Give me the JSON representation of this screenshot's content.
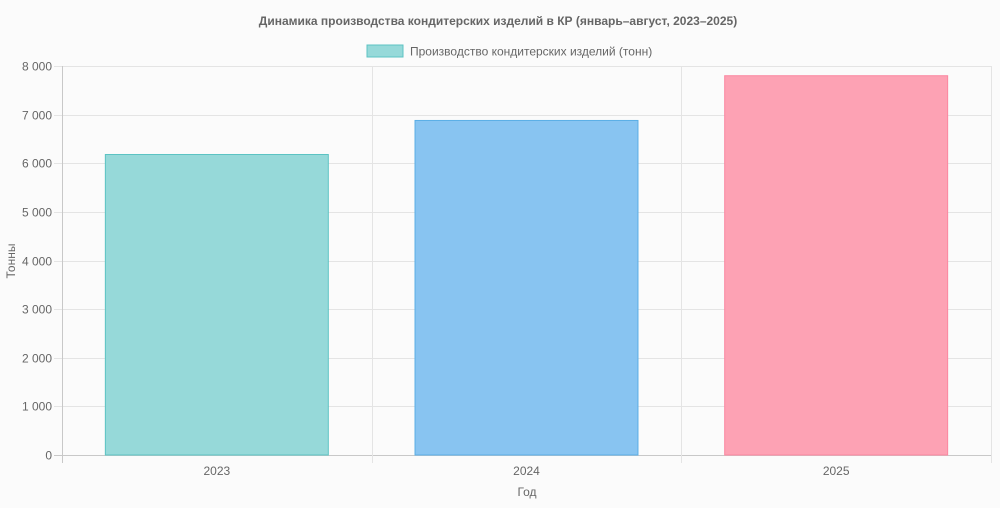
{
  "chart_data": {
    "type": "bar",
    "title": "Динамика производства кондитерских изделий в КР (январь–август, 2023–2025)",
    "categories": [
      "2023",
      "2024",
      "2025"
    ],
    "series": [
      {
        "name": "Производство кондитерских изделий (тонн)",
        "values": [
          6180,
          6880,
          7800
        ]
      }
    ],
    "xlabel": "Год",
    "ylabel": "Тонны",
    "ylim": [
      0,
      8000
    ],
    "yticks": [
      0,
      1000,
      2000,
      3000,
      4000,
      5000,
      6000,
      7000,
      8000
    ],
    "ytick_labels": [
      "0",
      "1 000",
      "2 000",
      "3 000",
      "4 000",
      "5 000",
      "6 000",
      "7 000",
      "8 000"
    ],
    "grid": true,
    "legend_position": "top",
    "bar_fill_colors": [
      "#96d9d9",
      "#88c4f1",
      "#fda2b4"
    ],
    "bar_stroke_colors": [
      "#5cc3c3",
      "#5aaee6",
      "#fb87a0"
    ],
    "legend_fill_color": "#96d9d9",
    "legend_stroke_color": "#5cc3c3"
  }
}
